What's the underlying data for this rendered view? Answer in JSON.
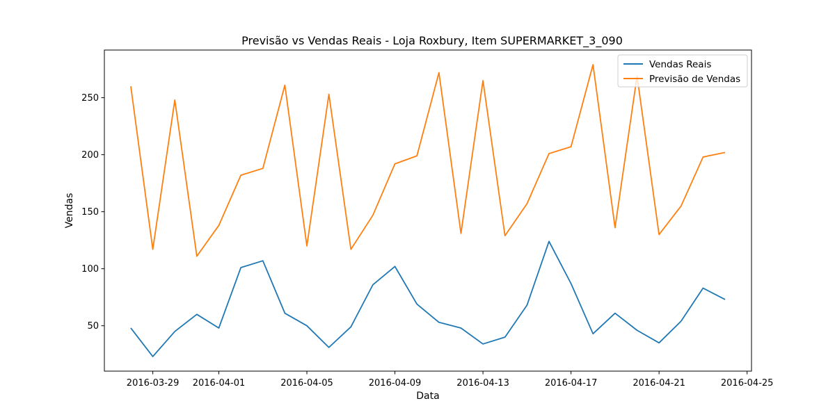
{
  "chart_data": {
    "type": "line",
    "title": "Previsão vs Vendas Reais - Loja Roxbury, Item SUPERMARKET_3_090",
    "xlabel": "Data",
    "ylabel": "Vendas",
    "x": [
      "2016-03-28",
      "2016-03-29",
      "2016-03-30",
      "2016-03-31",
      "2016-04-01",
      "2016-04-02",
      "2016-04-03",
      "2016-04-04",
      "2016-04-05",
      "2016-04-06",
      "2016-04-07",
      "2016-04-08",
      "2016-04-09",
      "2016-04-10",
      "2016-04-11",
      "2016-04-12",
      "2016-04-13",
      "2016-04-14",
      "2016-04-15",
      "2016-04-16",
      "2016-04-17",
      "2016-04-18",
      "2016-04-19",
      "2016-04-20",
      "2016-04-21",
      "2016-04-22",
      "2016-04-23",
      "2016-04-24"
    ],
    "xticks": [
      "2016-03-29",
      "2016-04-01",
      "2016-04-05",
      "2016-04-09",
      "2016-04-13",
      "2016-04-17",
      "2016-04-21",
      "2016-04-25"
    ],
    "xlim": [
      "2016-03-26T19:12",
      "2016-04-25T04:48"
    ],
    "yticks": [
      50,
      100,
      150,
      200,
      250
    ],
    "ylim": [
      10.2,
      291.8
    ],
    "grid": false,
    "legend_position": "top-right",
    "series": [
      {
        "name": "Vendas Reais",
        "color": "#1f77b4",
        "values": [
          48,
          23,
          45,
          60,
          48,
          101,
          107,
          61,
          50,
          31,
          49,
          86,
          102,
          69,
          53,
          48,
          34,
          40,
          68,
          124,
          87,
          43,
          61,
          46,
          35,
          54,
          83,
          73
        ]
      },
      {
        "name": "Previsão de Vendas",
        "color": "#ff7f0e",
        "values": [
          260,
          117,
          248,
          111,
          138,
          182,
          188,
          261,
          120,
          253,
          117,
          147,
          192,
          199,
          272,
          131,
          265,
          129,
          157,
          201,
          207,
          279,
          136,
          269,
          130,
          155,
          198,
          202
        ]
      }
    ]
  }
}
